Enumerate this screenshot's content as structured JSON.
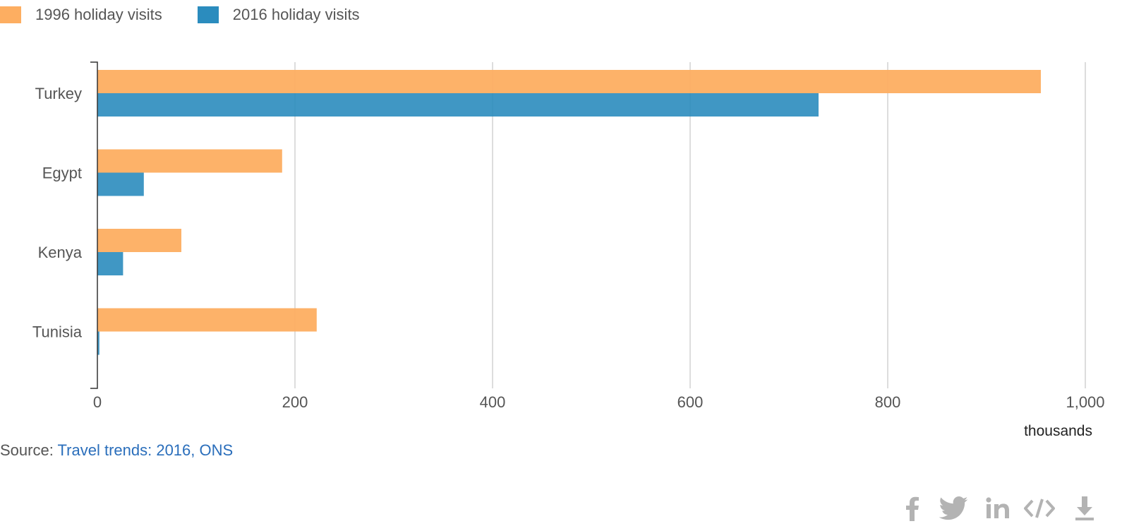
{
  "legend": [
    {
      "label": "1996 holiday visits",
      "color": "#fdae61"
    },
    {
      "label": "2016 holiday visits",
      "color": "#2b8cbe"
    }
  ],
  "chart_data": {
    "type": "bar",
    "orientation": "horizontal",
    "categories": [
      "Turkey",
      "Egypt",
      "Kenya",
      "Tunisia"
    ],
    "series": [
      {
        "name": "1996 holiday visits",
        "color": "#fdae61",
        "values": [
          955,
          187,
          85,
          222
        ]
      },
      {
        "name": "2016 holiday visits",
        "color": "#2b8cbe",
        "values": [
          730,
          47,
          26,
          2
        ]
      }
    ],
    "xlim": [
      0,
      1000
    ],
    "xticks": [
      0,
      200,
      400,
      600,
      800,
      1000
    ],
    "xtick_labels": [
      "0",
      "200",
      "400",
      "600",
      "800",
      "1,000"
    ],
    "xlabel": "thousands",
    "grid": true,
    "legend_position": "top-left"
  },
  "source": {
    "prefix": "Source: ",
    "link_text": "Travel trends: 2016, ONS"
  },
  "share_icons": [
    "facebook-icon",
    "twitter-icon",
    "linkedin-icon",
    "embed-icon",
    "download-icon"
  ],
  "colors": {
    "bar_1996": "#fdae61",
    "bar_2016": "#2b8cbe",
    "gridline": "#bbbbbb",
    "text": "#555555",
    "link": "#2a6ebb",
    "icon": "#b3b3b3"
  }
}
